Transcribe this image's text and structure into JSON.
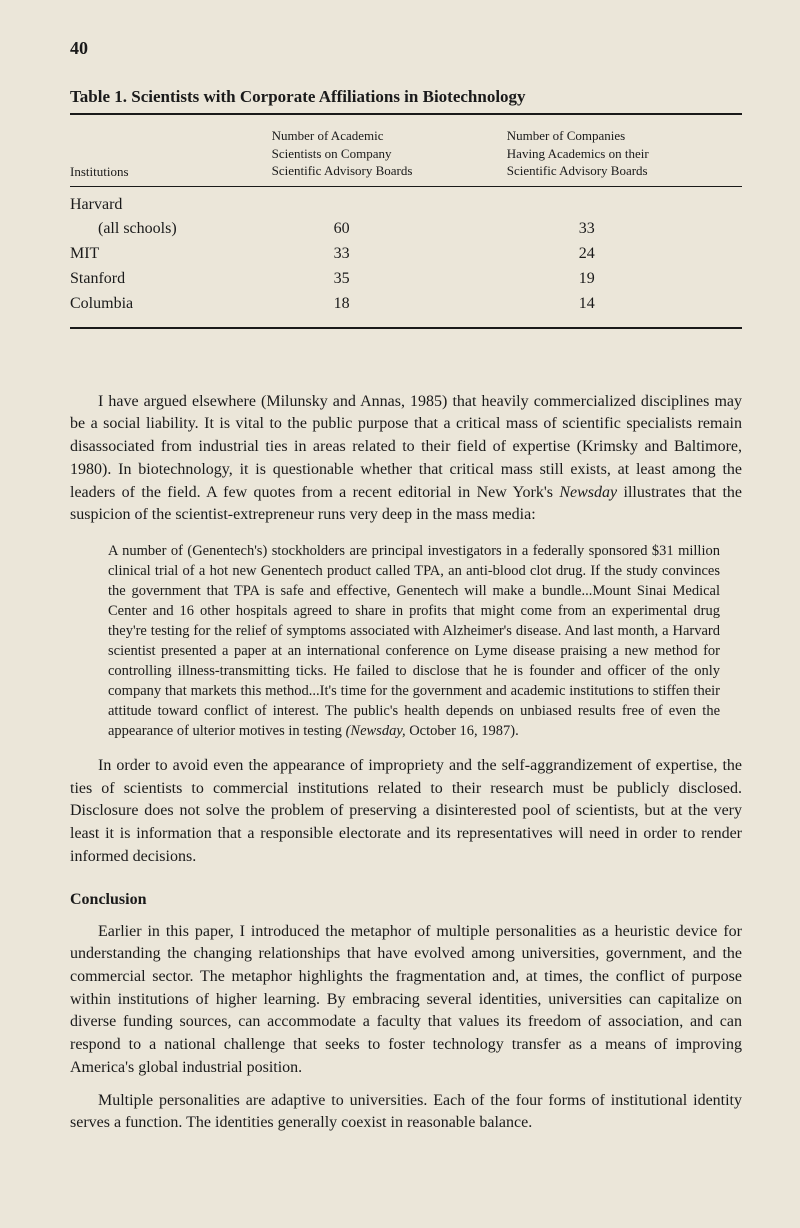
{
  "page_number": "40",
  "table": {
    "title": "Table 1. Scientists with Corporate Affiliations in Biotechnology",
    "headers": {
      "col1": "Institutions",
      "col2_line1": "Number of Academic",
      "col2_line2": "Scientists on Company",
      "col2_line3": "Scientific Advisory Boards",
      "col3_line1": "Number of Companies",
      "col3_line2": "Having Academics on their",
      "col3_line3": "Scientific Advisory Boards"
    },
    "rows": [
      {
        "institution": "Harvard",
        "scientists": "",
        "companies": "",
        "indent": false
      },
      {
        "institution": "(all schools)",
        "scientists": "60",
        "companies": "33",
        "indent": true
      },
      {
        "institution": "MIT",
        "scientists": "33",
        "companies": "24",
        "indent": false
      },
      {
        "institution": "Stanford",
        "scientists": "35",
        "companies": "19",
        "indent": false
      },
      {
        "institution": "Columbia",
        "scientists": "18",
        "companies": "14",
        "indent": false
      }
    ]
  },
  "para1_a": "I have argued elsewhere (Milunsky and Annas, 1985) that heavily commercialized disciplines may be a social liability. It is vital to the public purpose that a critical mass of scientific specialists remain disassociated from industrial ties in areas related to their field of expertise (Krimsky and Baltimore, 1980). In biotechnology, it is questionable whether that critical mass still exists, at least among the leaders of the field. A few quotes from a recent editorial in New York's ",
  "para1_i": "Newsday",
  "para1_b": " illustrates that the suspicion of the scientist-extrepreneur runs very deep in the mass media:",
  "blockquote_a": "A number of (Genentech's) stockholders are principal investigators in a federally sponsored $31 million clinical trial of a hot new Genentech product called TPA, an anti-blood clot drug. If the study convinces the government that TPA is safe and effective, Genentech will make a bundle...Mount Sinai Medical Center and 16 other hospitals agreed to share in profits that might come from an experimental drug they're testing for the relief of symptoms associated with Alzheimer's disease. And last month, a Harvard scientist presented a paper at an international conference on Lyme disease praising a new method for controlling illness-transmitting ticks. He failed to disclose that he is founder and officer of the only company that markets this method...It's time for the government and academic institutions to stiffen their attitude toward conflict of interest. The public's health depends on unbiased results free of even the appearance of ulterior motives in testing ",
  "blockquote_i": "(Newsday,",
  "blockquote_b": " October 16, 1987).",
  "para2": "In order to avoid even the appearance of impropriety and the self-aggrandizement of expertise, the ties of scientists to commercial institutions related to their research must be publicly disclosed. Disclosure does not solve the problem of preserving a disinterested pool of scientists, but at the very least it is information that a responsible electorate and its representatives will need in order to render informed decisions.",
  "conclusion_heading": "Conclusion",
  "para3": "Earlier in this paper, I introduced the metaphor of multiple personalities as a heuristic device for understanding the changing relationships that have evolved among universities, government, and the commercial sector. The metaphor highlights the fragmentation and, at times, the conflict of purpose within institutions of higher learning. By embracing several identities, universities can capitalize on diverse funding sources, can accommodate a faculty that values its freedom of association, and can respond to a national challenge that seeks to foster technology transfer as a means of improving America's global industrial position.",
  "para4": "Multiple personalities are adaptive to universities. Each of the four forms of institutional identity serves a function. The identities generally coexist in reasonable balance."
}
